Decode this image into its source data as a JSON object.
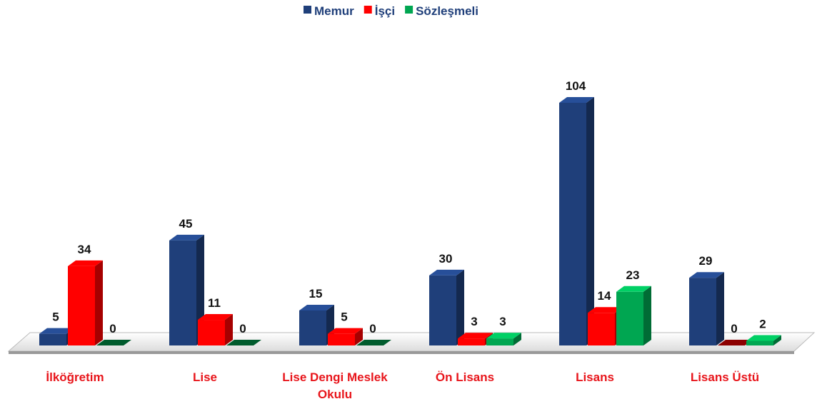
{
  "chart_data": {
    "type": "bar3d",
    "categories": [
      "İlköğretim",
      "Lise",
      "Lise Dengi Meslek Okulu",
      "Ön Lisans",
      "Lisans",
      "Lisans Üstü"
    ],
    "series": [
      {
        "name": "Memur",
        "color": "#1f3f7a",
        "values": [
          5,
          45,
          15,
          30,
          104,
          29
        ]
      },
      {
        "name": "İşçi",
        "color": "#ff0000",
        "values": [
          34,
          11,
          5,
          3,
          14,
          0
        ]
      },
      {
        "name": "Sözleşmeli",
        "color": "#00a651",
        "values": [
          0,
          0,
          0,
          3,
          23,
          2
        ]
      }
    ],
    "legend": "top",
    "category_color": "#e8151b"
  }
}
